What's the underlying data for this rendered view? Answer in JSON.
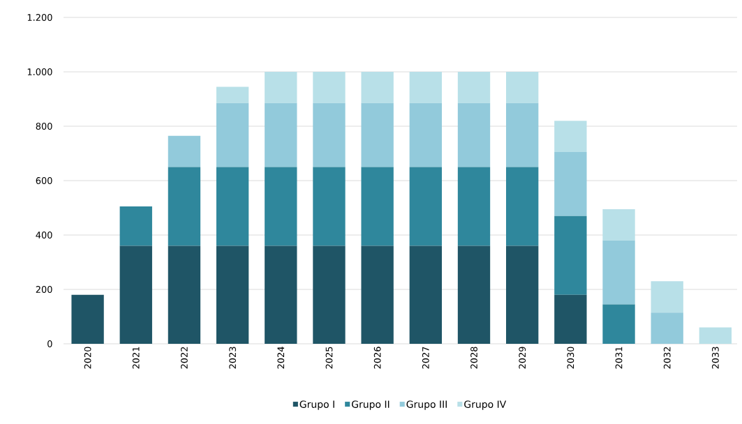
{
  "chart_data": {
    "type": "bar",
    "stacked": true,
    "categories": [
      "2020",
      "2021",
      "2022",
      "2023",
      "2024",
      "2025",
      "2026",
      "2027",
      "2028",
      "2029",
      "2030",
      "2031",
      "2032",
      "2033"
    ],
    "series": [
      {
        "name": "Grupo I",
        "color": "#1f5566",
        "values": [
          180,
          360,
          360,
          360,
          360,
          360,
          360,
          360,
          360,
          360,
          180,
          null,
          null,
          null
        ]
      },
      {
        "name": "Grupo II",
        "color": "#2f879c",
        "values": [
          null,
          145,
          290,
          290,
          290,
          290,
          290,
          290,
          290,
          290,
          290,
          145,
          null,
          null
        ]
      },
      {
        "name": "Grupo III",
        "color": "#92cadb",
        "values": [
          null,
          null,
          115,
          235,
          235,
          235,
          235,
          235,
          235,
          235,
          235,
          235,
          115,
          null
        ]
      },
      {
        "name": "Grupo IV",
        "color": "#b8e0e8",
        "values": [
          null,
          null,
          null,
          60,
          115,
          115,
          115,
          115,
          115,
          115,
          115,
          115,
          115,
          60
        ]
      }
    ],
    "ylim": [
      0,
      1200
    ],
    "yticks": [
      0,
      200,
      400,
      600,
      800,
      {
        "value": 1000,
        "label": "1.000"
      },
      {
        "value": 1200,
        "label": "1.200"
      }
    ],
    "grid": "y",
    "legend": "bottom"
  }
}
